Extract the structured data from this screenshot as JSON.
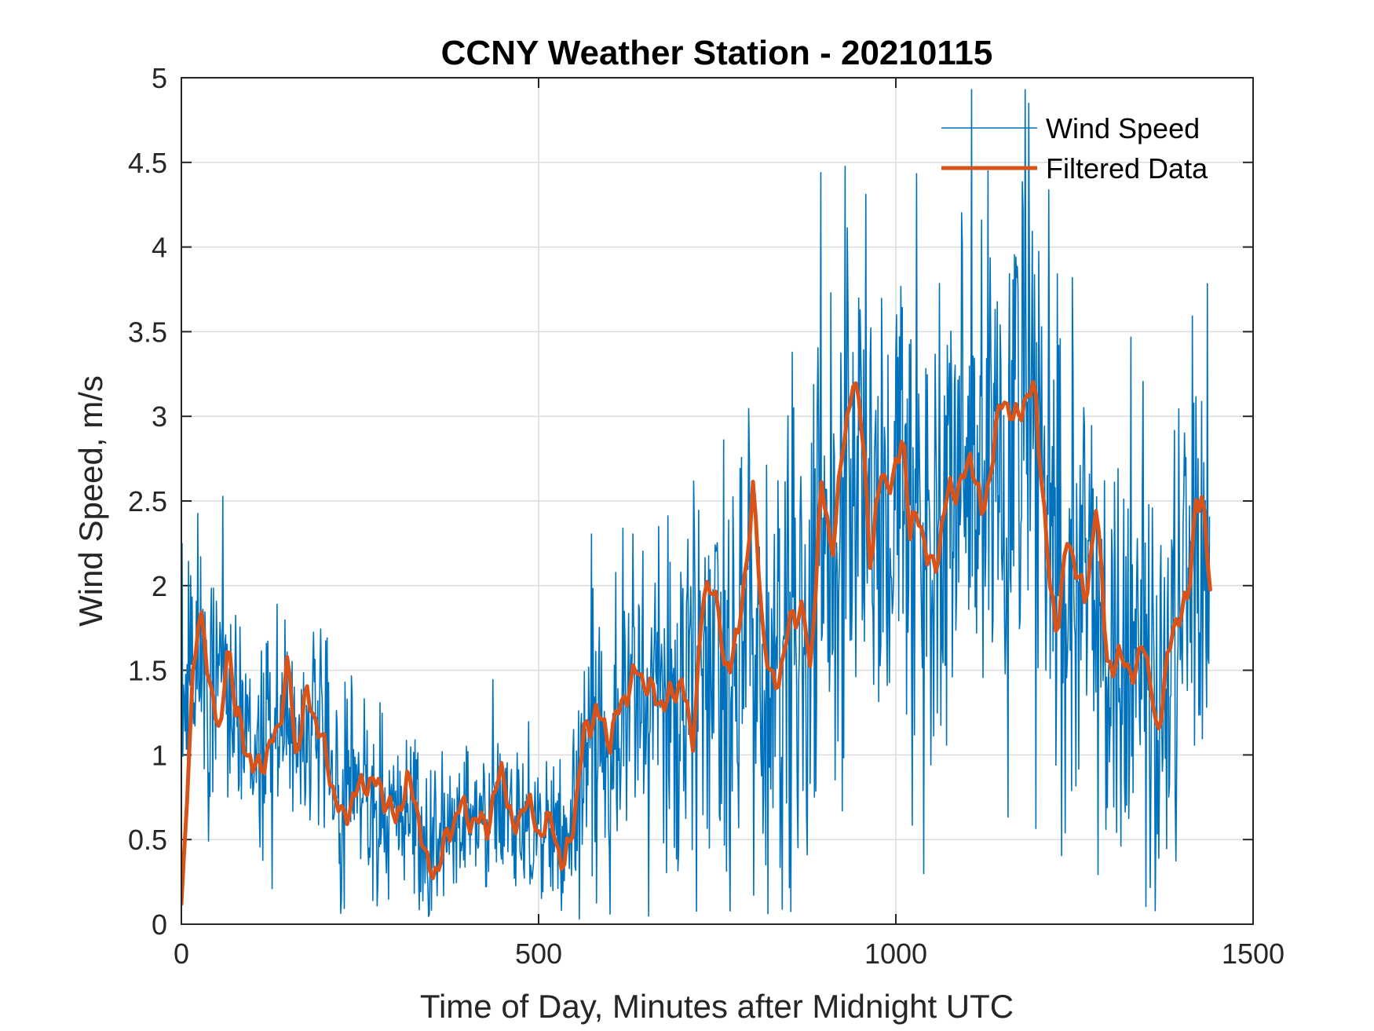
{
  "chart_data": {
    "type": "line",
    "title": "CCNY Weather Station - 20210115",
    "xlabel": "Time of Day, Minutes after Midnight UTC",
    "ylabel": "Wind Speed, m/s",
    "xlim": [
      0,
      1500
    ],
    "ylim": [
      0,
      5
    ],
    "xticks": [
      0,
      500,
      1000,
      1500
    ],
    "xtick_labels": [
      "0",
      "500",
      "1000",
      "1500"
    ],
    "yticks": [
      0,
      0.5,
      1,
      1.5,
      2,
      2.5,
      3,
      3.5,
      4,
      4.5,
      5
    ],
    "ytick_labels": [
      "0",
      "0.5",
      "1",
      "1.5",
      "2",
      "2.5",
      "3",
      "3.5",
      "4",
      "4.5",
      "5"
    ],
    "grid": true,
    "legend_position": "top-right",
    "series": [
      {
        "name": "Wind Speed",
        "color": "#0072BD",
        "x_start": 0,
        "x_step": 1,
        "n": 1440,
        "anchors": [
          [
            0,
            1.3
          ],
          [
            20,
            1.55
          ],
          [
            40,
            1.45
          ],
          [
            60,
            1.55
          ],
          [
            80,
            1.15
          ],
          [
            100,
            0.95
          ],
          [
            120,
            1.05
          ],
          [
            140,
            1.2
          ],
          [
            160,
            1.05
          ],
          [
            180,
            1.25
          ],
          [
            200,
            1.0
          ],
          [
            220,
            0.75
          ],
          [
            240,
            0.8
          ],
          [
            260,
            0.8
          ],
          [
            300,
            0.7
          ],
          [
            320,
            0.6
          ],
          [
            340,
            0.4
          ],
          [
            360,
            0.45
          ],
          [
            380,
            0.55
          ],
          [
            400,
            0.6
          ],
          [
            440,
            0.6
          ],
          [
            460,
            0.75
          ],
          [
            480,
            0.65
          ],
          [
            500,
            0.55
          ],
          [
            520,
            0.55
          ],
          [
            535,
            0.35
          ],
          [
            550,
            0.8
          ],
          [
            570,
            1.2
          ],
          [
            600,
            1.15
          ],
          [
            620,
            1.4
          ],
          [
            650,
            1.35
          ],
          [
            680,
            1.3
          ],
          [
            700,
            1.35
          ],
          [
            720,
            1.2
          ],
          [
            740,
            1.75
          ],
          [
            760,
            1.6
          ],
          [
            780,
            1.55
          ],
          [
            800,
            1.9
          ],
          [
            820,
            1.5
          ],
          [
            840,
            1.45
          ],
          [
            860,
            1.75
          ],
          [
            880,
            1.6
          ],
          [
            900,
            2.4
          ],
          [
            920,
            2.3
          ],
          [
            940,
            2.9
          ],
          [
            960,
            2.6
          ],
          [
            980,
            2.3
          ],
          [
            1000,
            2.6
          ],
          [
            1020,
            2.4
          ],
          [
            1040,
            2.25
          ],
          [
            1060,
            2.2
          ],
          [
            1080,
            2.5
          ],
          [
            1100,
            2.6
          ],
          [
            1120,
            2.65
          ],
          [
            1140,
            2.5
          ],
          [
            1160,
            2.9
          ],
          [
            1180,
            2.95
          ],
          [
            1200,
            2.9
          ],
          [
            1220,
            2.0
          ],
          [
            1240,
            1.8
          ],
          [
            1260,
            2.0
          ],
          [
            1280,
            1.9
          ],
          [
            1300,
            1.55
          ],
          [
            1320,
            1.45
          ],
          [
            1340,
            1.55
          ],
          [
            1360,
            1.15
          ],
          [
            1380,
            1.4
          ],
          [
            1400,
            1.85
          ],
          [
            1420,
            2.25
          ],
          [
            1440,
            2.0
          ]
        ],
        "noise": [
          [
            0,
            0.45
          ],
          [
            200,
            0.35
          ],
          [
            350,
            0.3
          ],
          [
            530,
            0.3
          ],
          [
            560,
            0.5
          ],
          [
            700,
            0.6
          ],
          [
            750,
            0.8
          ],
          [
            900,
            1.0
          ],
          [
            1200,
            1.05
          ],
          [
            1250,
            0.8
          ],
          [
            1440,
            0.75
          ]
        ],
        "peak_value": 4.93
      },
      {
        "name": "Filtered Data",
        "color": "#D95319",
        "x_start": 0,
        "x_step": 4,
        "n": 361,
        "anchors": [
          [
            0,
            0.12
          ],
          [
            5,
            0.4
          ],
          [
            15,
            1.45
          ],
          [
            25,
            1.85
          ],
          [
            35,
            1.55
          ],
          [
            45,
            1.35
          ],
          [
            55,
            1.05
          ],
          [
            65,
            1.75
          ],
          [
            75,
            1.25
          ],
          [
            85,
            1.15
          ],
          [
            100,
            0.9
          ],
          [
            120,
            1.0
          ],
          [
            135,
            1.15
          ],
          [
            150,
            1.55
          ],
          [
            160,
            1.0
          ],
          [
            175,
            1.35
          ],
          [
            190,
            1.2
          ],
          [
            210,
            0.85
          ],
          [
            225,
            0.6
          ],
          [
            240,
            0.75
          ],
          [
            260,
            0.85
          ],
          [
            280,
            0.8
          ],
          [
            300,
            0.6
          ],
          [
            315,
            0.85
          ],
          [
            330,
            0.7
          ],
          [
            345,
            0.3
          ],
          [
            360,
            0.35
          ],
          [
            375,
            0.55
          ],
          [
            390,
            0.7
          ],
          [
            410,
            0.6
          ],
          [
            430,
            0.6
          ],
          [
            450,
            0.95
          ],
          [
            465,
            0.5
          ],
          [
            480,
            0.75
          ],
          [
            500,
            0.55
          ],
          [
            520,
            0.6
          ],
          [
            535,
            0.3
          ],
          [
            550,
            0.65
          ],
          [
            565,
            1.15
          ],
          [
            580,
            1.25
          ],
          [
            600,
            1.1
          ],
          [
            620,
            1.35
          ],
          [
            640,
            1.5
          ],
          [
            660,
            1.35
          ],
          [
            680,
            1.3
          ],
          [
            700,
            1.45
          ],
          [
            715,
            1.05
          ],
          [
            730,
            1.9
          ],
          [
            745,
            2.05
          ],
          [
            760,
            1.5
          ],
          [
            780,
            1.7
          ],
          [
            800,
            2.55
          ],
          [
            815,
            1.7
          ],
          [
            830,
            1.35
          ],
          [
            850,
            1.75
          ],
          [
            870,
            1.9
          ],
          [
            880,
            1.45
          ],
          [
            895,
            2.6
          ],
          [
            910,
            2.2
          ],
          [
            925,
            2.75
          ],
          [
            940,
            3.25
          ],
          [
            955,
            2.85
          ],
          [
            965,
            2.1
          ],
          [
            980,
            2.7
          ],
          [
            995,
            2.55
          ],
          [
            1010,
            2.95
          ],
          [
            1020,
            2.25
          ],
          [
            1030,
            2.5
          ],
          [
            1045,
            2.1
          ],
          [
            1060,
            2.2
          ],
          [
            1075,
            2.6
          ],
          [
            1090,
            2.55
          ],
          [
            1105,
            2.8
          ],
          [
            1120,
            2.4
          ],
          [
            1135,
            2.75
          ],
          [
            1150,
            3.15
          ],
          [
            1165,
            2.95
          ],
          [
            1180,
            3.1
          ],
          [
            1195,
            3.15
          ],
          [
            1205,
            2.6
          ],
          [
            1215,
            2.0
          ],
          [
            1225,
            1.75
          ],
          [
            1240,
            2.25
          ],
          [
            1255,
            2.1
          ],
          [
            1265,
            1.85
          ],
          [
            1280,
            2.5
          ],
          [
            1295,
            1.6
          ],
          [
            1305,
            1.5
          ],
          [
            1320,
            1.6
          ],
          [
            1335,
            1.4
          ],
          [
            1345,
            1.75
          ],
          [
            1355,
            1.45
          ],
          [
            1365,
            1.1
          ],
          [
            1380,
            1.55
          ],
          [
            1395,
            1.85
          ],
          [
            1410,
            1.9
          ],
          [
            1420,
            2.55
          ],
          [
            1430,
            2.45
          ],
          [
            1440,
            2.0
          ]
        ],
        "wiggle_amplitude": 0.1
      }
    ]
  }
}
